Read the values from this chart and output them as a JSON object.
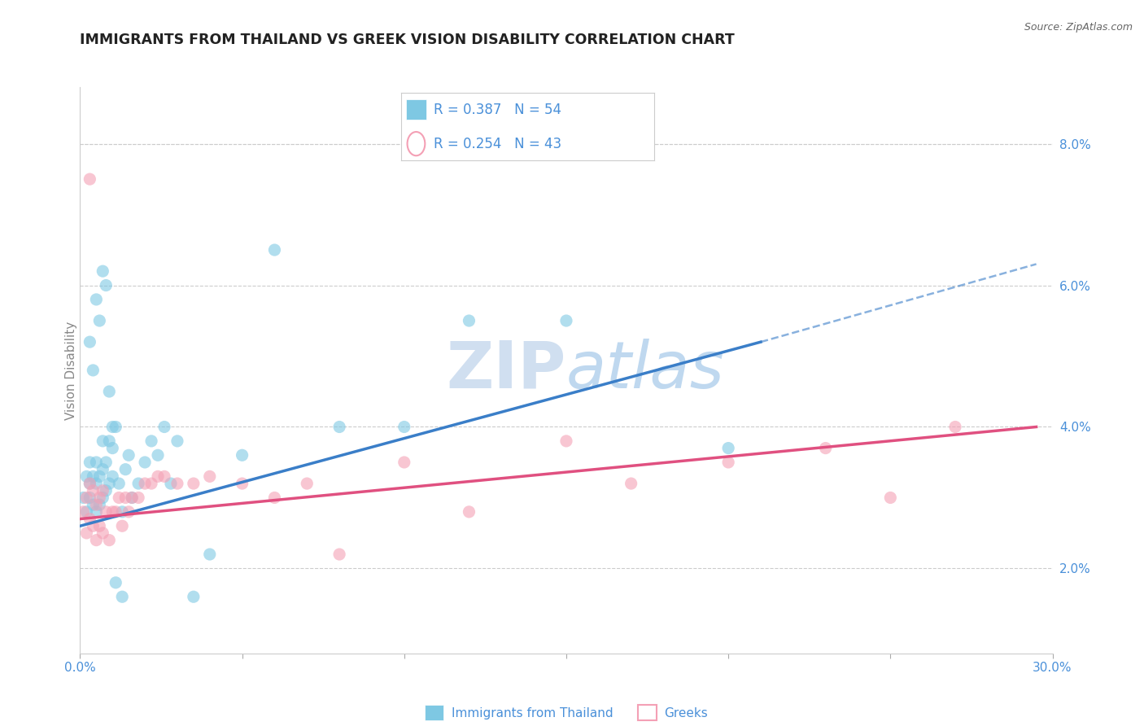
{
  "title": "IMMIGRANTS FROM THAILAND VS GREEK VISION DISABILITY CORRELATION CHART",
  "source": "Source: ZipAtlas.com",
  "ylabel": "Vision Disability",
  "xlim": [
    0.0,
    0.3
  ],
  "ylim": [
    0.008,
    0.088
  ],
  "xticks": [
    0.0,
    0.05,
    0.1,
    0.15,
    0.2,
    0.25,
    0.3
  ],
  "xtick_labels": [
    "0.0%",
    "",
    "",
    "",
    "",
    "",
    "30.0%"
  ],
  "yticks": [
    0.02,
    0.04,
    0.06,
    0.08
  ],
  "ytick_labels": [
    "2.0%",
    "4.0%",
    "6.0%",
    "8.0%"
  ],
  "legend1_R": "0.387",
  "legend1_N": "54",
  "legend2_R": "0.254",
  "legend2_N": "43",
  "color_blue": "#7EC8E3",
  "color_pink": "#F4A0B5",
  "color_trendline_blue": "#3A7EC8",
  "color_trendline_pink": "#E05080",
  "color_title": "#222222",
  "color_tick_labels": "#4A90D9",
  "watermark_color": "#D0DFF0",
  "background_color": "#ffffff",
  "grid_color": "#cccccc",
  "scatter_blue_x": [
    0.001,
    0.002,
    0.002,
    0.003,
    0.003,
    0.003,
    0.004,
    0.004,
    0.005,
    0.005,
    0.005,
    0.006,
    0.006,
    0.007,
    0.007,
    0.007,
    0.008,
    0.008,
    0.009,
    0.009,
    0.01,
    0.01,
    0.011,
    0.012,
    0.013,
    0.014,
    0.015,
    0.016,
    0.018,
    0.02,
    0.022,
    0.024,
    0.026,
    0.028,
    0.03,
    0.035,
    0.04,
    0.05,
    0.06,
    0.08,
    0.1,
    0.12,
    0.15,
    0.003,
    0.004,
    0.005,
    0.006,
    0.007,
    0.008,
    0.009,
    0.01,
    0.011,
    0.013,
    0.2
  ],
  "scatter_blue_y": [
    0.03,
    0.028,
    0.033,
    0.03,
    0.032,
    0.035,
    0.029,
    0.033,
    0.028,
    0.032,
    0.035,
    0.029,
    0.033,
    0.03,
    0.034,
    0.038,
    0.031,
    0.035,
    0.032,
    0.038,
    0.033,
    0.037,
    0.04,
    0.032,
    0.028,
    0.034,
    0.036,
    0.03,
    0.032,
    0.035,
    0.038,
    0.036,
    0.04,
    0.032,
    0.038,
    0.016,
    0.022,
    0.036,
    0.065,
    0.04,
    0.04,
    0.055,
    0.055,
    0.052,
    0.048,
    0.058,
    0.055,
    0.062,
    0.06,
    0.045,
    0.04,
    0.018,
    0.016,
    0.037
  ],
  "scatter_pink_x": [
    0.001,
    0.002,
    0.002,
    0.003,
    0.003,
    0.004,
    0.004,
    0.005,
    0.005,
    0.006,
    0.006,
    0.007,
    0.007,
    0.008,
    0.009,
    0.01,
    0.011,
    0.012,
    0.013,
    0.014,
    0.015,
    0.016,
    0.018,
    0.02,
    0.022,
    0.024,
    0.026,
    0.03,
    0.035,
    0.04,
    0.05,
    0.06,
    0.07,
    0.08,
    0.1,
    0.12,
    0.15,
    0.17,
    0.2,
    0.23,
    0.25,
    0.27,
    0.003
  ],
  "scatter_pink_y": [
    0.028,
    0.025,
    0.03,
    0.027,
    0.032,
    0.026,
    0.031,
    0.024,
    0.029,
    0.026,
    0.03,
    0.025,
    0.031,
    0.028,
    0.024,
    0.028,
    0.028,
    0.03,
    0.026,
    0.03,
    0.028,
    0.03,
    0.03,
    0.032,
    0.032,
    0.033,
    0.033,
    0.032,
    0.032,
    0.033,
    0.032,
    0.03,
    0.032,
    0.022,
    0.035,
    0.028,
    0.038,
    0.032,
    0.035,
    0.037,
    0.03,
    0.04,
    0.075
  ],
  "trendline_blue_x0": 0.0,
  "trendline_blue_y0": 0.026,
  "trendline_blue_x1": 0.21,
  "trendline_blue_y1": 0.052,
  "trendline_blue_x_dash_end": 0.295,
  "trendline_blue_y_dash_end": 0.063,
  "trendline_pink_x0": 0.0,
  "trendline_pink_y0": 0.027,
  "trendline_pink_x1": 0.295,
  "trendline_pink_y1": 0.04
}
